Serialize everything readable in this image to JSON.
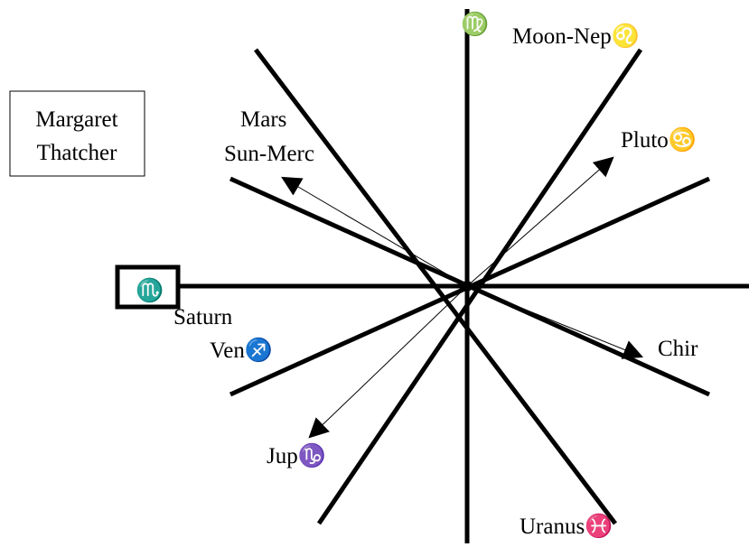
{
  "title": {
    "lines": [
      "Margaret",
      "Thatcher"
    ]
  },
  "labels": {
    "top_sign": "♍",
    "moon_nep": "Moon-Nep♌",
    "mars": "Mars",
    "sun_merc": "Sun-Merc",
    "pluto": "Pluto♋",
    "left_sign": "♏",
    "saturn": "Saturn",
    "ven": "Ven♐",
    "chir": "Chir",
    "jup": "Jup♑",
    "uranus": "Uranus♓"
  }
}
